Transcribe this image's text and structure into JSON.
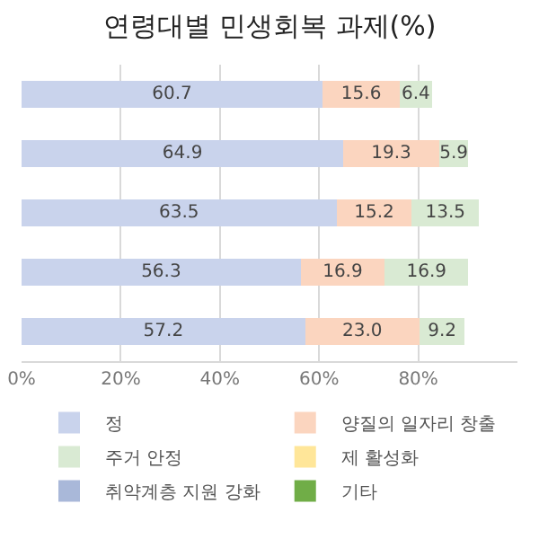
{
  "chart_data": {
    "type": "bar",
    "orientation": "horizontal",
    "stacked": true,
    "title": "연령대별 민생회복 과제(%)",
    "categories": [
      null,
      null,
      null,
      null,
      null
    ],
    "series": [
      {
        "name": "정",
        "color": "#c9d3ec",
        "values": [
          60.7,
          64.9,
          63.5,
          56.3,
          57.2
        ],
        "value_labels": [
          "60.7",
          "64.9",
          "63.5",
          "56.3",
          "57.2"
        ]
      },
      {
        "name": "양질의 일자리 창출",
        "color": "#fbd5bf",
        "values": [
          15.6,
          19.3,
          15.2,
          16.9,
          23.0
        ],
        "value_labels": [
          "15.6",
          "19.3",
          "15.2",
          "16.9",
          "23.0"
        ]
      },
      {
        "name": "주거 안정",
        "color": "#d9ead3",
        "values": [
          6.4,
          5.9,
          13.5,
          16.9,
          9.2
        ],
        "value_labels": [
          "6.4",
          "5.9",
          "13.5",
          "16.9",
          "9.2"
        ]
      },
      {
        "name": "제 활성화",
        "color": "#ffe699",
        "values": [
          null,
          null,
          null,
          null,
          null
        ]
      },
      {
        "name": "취약계층 지원 강화",
        "color": "#a9b8d9",
        "values": [
          null,
          null,
          null,
          null,
          null
        ]
      },
      {
        "name": "기타",
        "color": "#70ad47",
        "values": [
          null,
          null,
          null,
          null,
          null
        ]
      }
    ],
    "xlim": [
      0,
      100
    ],
    "xticks": [
      {
        "value": 0,
        "label": "0%"
      },
      {
        "value": 20,
        "label": "20%"
      },
      {
        "value": 40,
        "label": "40%"
      },
      {
        "value": 60,
        "label": "60%"
      },
      {
        "value": 80,
        "label": "80%"
      }
    ],
    "grid": "x",
    "legend": "bottom"
  }
}
